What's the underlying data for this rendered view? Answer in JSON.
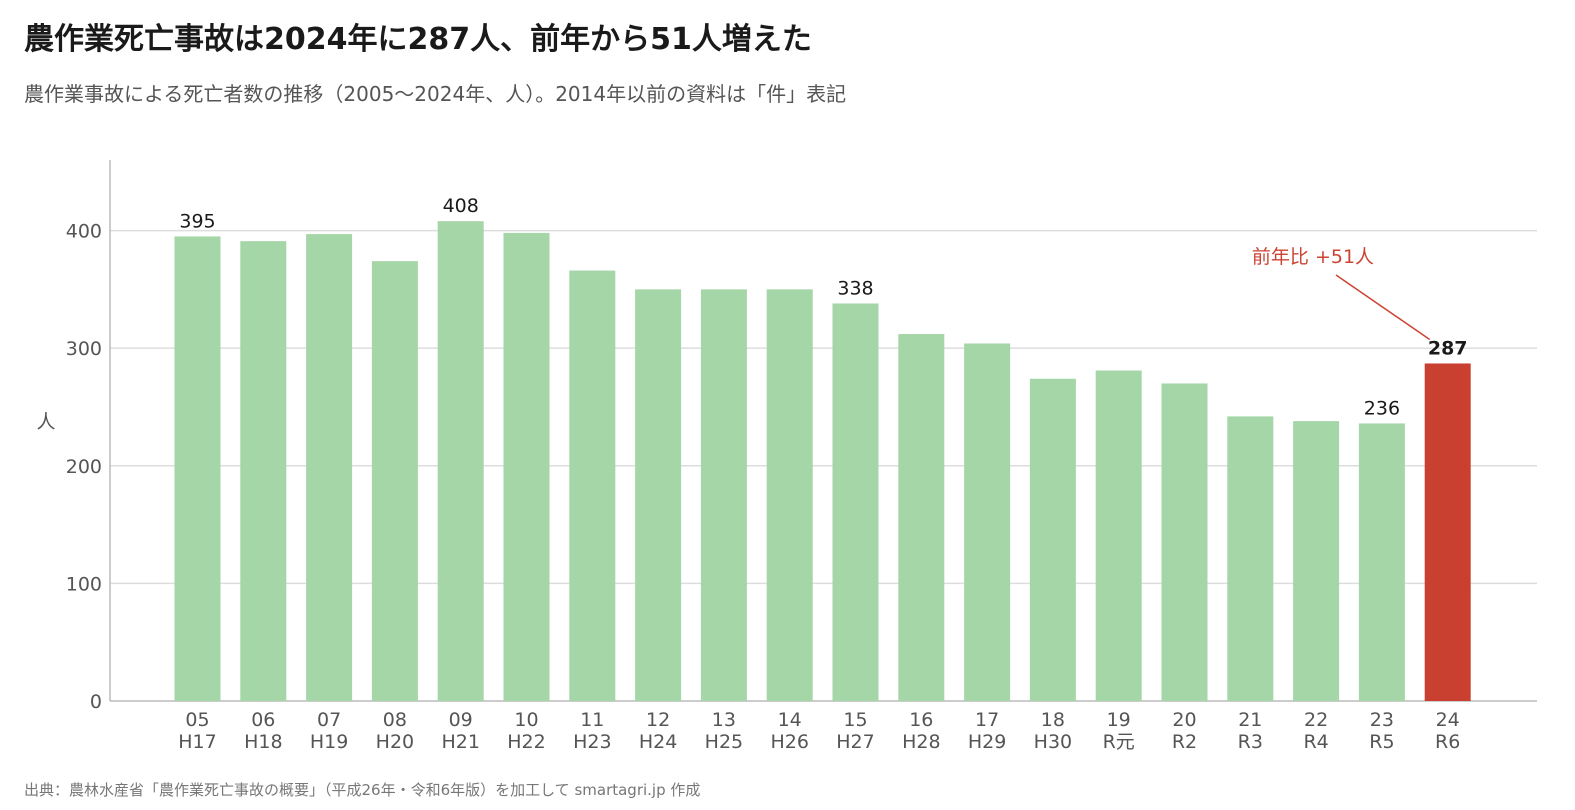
{
  "title": "農作業死亡事故は2024年に287人、前年から51人増えた",
  "subtitle": "農作業事故による死亡者数の推移（2005〜2024年、人）。2014年以前の資料は「件」表記",
  "source": "出典：農林水産省「農作業死亡事故の概要」（平成26年・令和6年版）を加工して smartagri.jp 作成",
  "colors": {
    "bar": "#a5d6a7",
    "highlight": "#c94030",
    "grid": "#dddddd",
    "axis": "#bbbbbb",
    "annotation": "#cc4433"
  },
  "chart_data": {
    "type": "bar",
    "categories": [
      "05",
      "06",
      "07",
      "08",
      "09",
      "10",
      "11",
      "12",
      "13",
      "14",
      "15",
      "16",
      "17",
      "18",
      "19",
      "20",
      "21",
      "22",
      "23",
      "24"
    ],
    "categories_sub": [
      "H17",
      "H18",
      "H19",
      "H20",
      "H21",
      "H22",
      "H23",
      "H24",
      "H25",
      "H26",
      "H27",
      "H28",
      "H29",
      "H30",
      "R元",
      "R2",
      "R3",
      "R4",
      "R5",
      "R6"
    ],
    "values": [
      395,
      391,
      397,
      374,
      408,
      398,
      366,
      350,
      350,
      350,
      338,
      312,
      304,
      274,
      281,
      270,
      242,
      238,
      236,
      287
    ],
    "labeled_indices": [
      0,
      4,
      10,
      18,
      19
    ],
    "highlight_index": 19,
    "ylabel": "人",
    "ylim": [
      0,
      460
    ],
    "yticks": [
      0,
      100,
      200,
      300,
      400
    ],
    "grid": true,
    "annotation": {
      "text": "前年比 +51人",
      "target_index": 19
    }
  }
}
